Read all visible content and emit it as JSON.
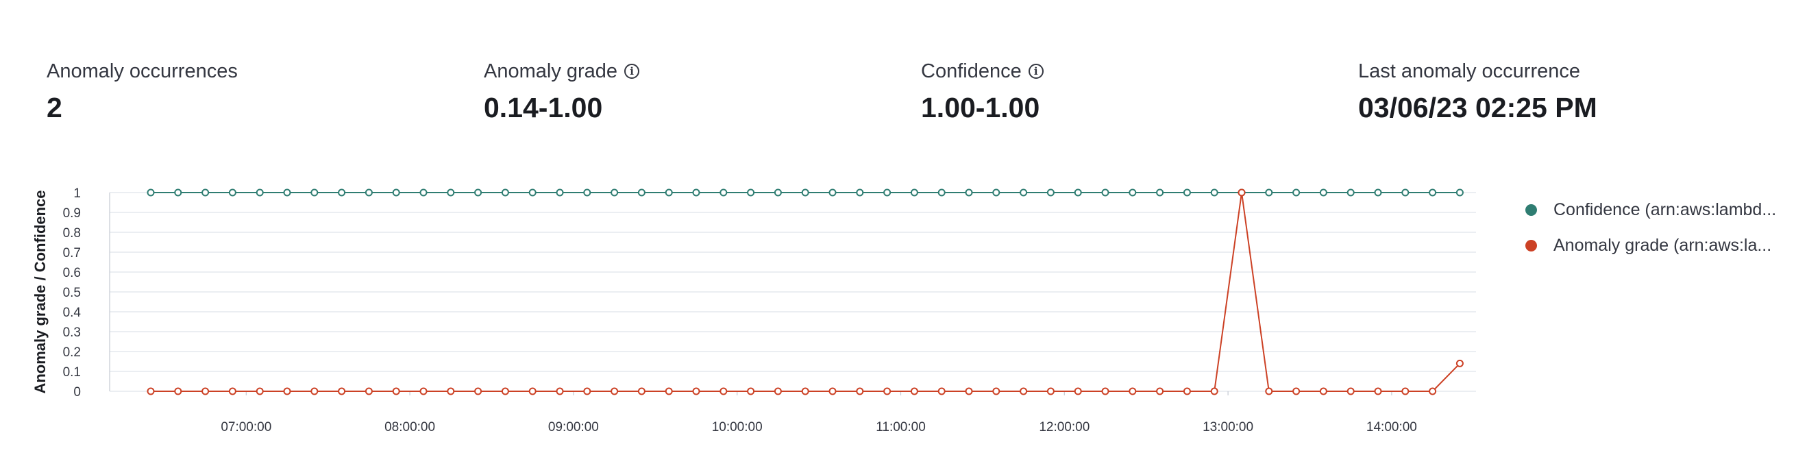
{
  "stats": [
    {
      "title": "Anomaly occurrences",
      "value": "2",
      "info": false
    },
    {
      "title": "Anomaly grade",
      "value": "0.14-1.00",
      "info": true
    },
    {
      "title": "Confidence",
      "value": "1.00-1.00",
      "info": true
    },
    {
      "title": "Last anomaly occurrence",
      "value": "03/06/23 02:25 PM",
      "info": false
    }
  ],
  "chart_data": {
    "type": "line",
    "xlabel": "",
    "ylabel": "Anomaly grade / Confidence",
    "ylim": [
      0,
      1
    ],
    "yticks": [
      "0",
      "0.1",
      "0.2",
      "0.3",
      "0.4",
      "0.5",
      "0.6",
      "0.7",
      "0.8",
      "0.9",
      "1"
    ],
    "xticks": [
      "07:00:00",
      "08:00:00",
      "09:00:00",
      "10:00:00",
      "11:00:00",
      "12:00:00",
      "13:00:00",
      "14:00:00"
    ],
    "x_range": [
      "06:25",
      "14:25"
    ],
    "x_interval_minutes": 10,
    "grid": true,
    "legend_position": "right",
    "series": [
      {
        "name": "Confidence (arn:aws:lambd...",
        "color": "#2f7d72",
        "values": [
          1,
          1,
          1,
          1,
          1,
          1,
          1,
          1,
          1,
          1,
          1,
          1,
          1,
          1,
          1,
          1,
          1,
          1,
          1,
          1,
          1,
          1,
          1,
          1,
          1,
          1,
          1,
          1,
          1,
          1,
          1,
          1,
          1,
          1,
          1,
          1,
          1,
          1,
          1,
          1,
          1,
          1,
          1,
          1,
          1,
          1,
          1,
          1,
          1
        ]
      },
      {
        "name": "Anomaly grade (arn:aws:la...",
        "color": "#cc4125",
        "values": [
          0,
          0,
          0,
          0,
          0,
          0,
          0,
          0,
          0,
          0,
          0,
          0,
          0,
          0,
          0,
          0,
          0,
          0,
          0,
          0,
          0,
          0,
          0,
          0,
          0,
          0,
          0,
          0,
          0,
          0,
          0,
          0,
          0,
          0,
          0,
          0,
          0,
          0,
          0,
          0,
          1,
          0,
          0,
          0,
          0,
          0,
          0,
          0,
          0.14
        ]
      }
    ]
  }
}
